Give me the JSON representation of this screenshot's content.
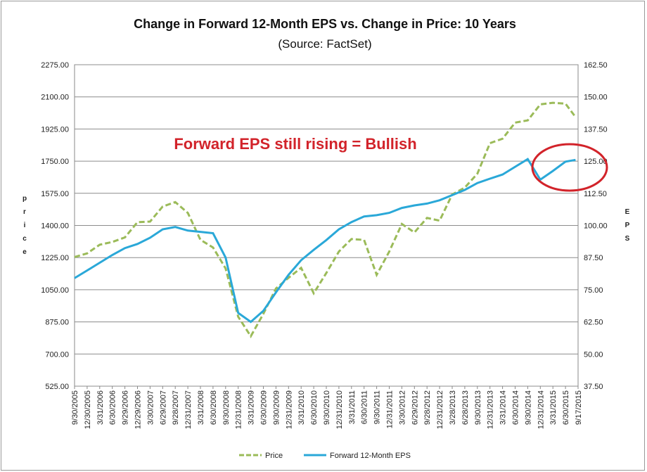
{
  "chart_data": {
    "type": "line",
    "title": "Change in Forward 12-Month EPS vs. Change in Price: 10 Years",
    "subtitle": "(Source: FactSet)",
    "ylabel_left": "Price",
    "ylabel_right": "EPS",
    "ylim_left": [
      525,
      2275
    ],
    "ylim_right": [
      37.5,
      162.5
    ],
    "yticks_left": [
      "2275.00",
      "2100.00",
      "1925.00",
      "1750.00",
      "1575.00",
      "1400.00",
      "1225.00",
      "1050.00",
      "875.00",
      "700.00",
      "525.00"
    ],
    "yticks_right": [
      "162.50",
      "150.00",
      "137.50",
      "125.00",
      "112.50",
      "100.00",
      "87.50",
      "75.00",
      "62.50",
      "50.00",
      "37.50"
    ],
    "x_ticks": [
      "9/30/2005",
      "12/30/2005",
      "3/31/2006",
      "6/30/2006",
      "9/29/2006",
      "12/29/2006",
      "3/30/2007",
      "6/29/2007",
      "9/28/2007",
      "12/31/2007",
      "3/31/2008",
      "6/30/2008",
      "9/30/2008",
      "12/31/2008",
      "3/31/2009",
      "6/30/2009",
      "9/30/2009",
      "12/31/2009",
      "3/31/2010",
      "6/30/2010",
      "9/30/2010",
      "12/31/2010",
      "3/31/2011",
      "6/30/2011",
      "9/30/2011",
      "12/31/2011",
      "3/30/2012",
      "6/29/2012",
      "9/28/2012",
      "12/31/2012",
      "3/28/2013",
      "6/28/2013",
      "9/30/2013",
      "12/31/2013",
      "3/31/2014",
      "6/30/2014",
      "9/30/2014",
      "12/31/2014",
      "3/31/2015",
      "6/30/2015",
      "9/17/2015"
    ],
    "grid": true,
    "legend_position": "bottom",
    "series": [
      {
        "name": "Price",
        "axis": "left",
        "color": "#9bbb59",
        "style": "dashed",
        "x": [
          0,
          1,
          2,
          3,
          4,
          5,
          6,
          7,
          8,
          9,
          10,
          11,
          12,
          13,
          14,
          15,
          16,
          17,
          18,
          19,
          20,
          21,
          22,
          23,
          24,
          25,
          26,
          27,
          28,
          29,
          30,
          31,
          32,
          33,
          34,
          35,
          36,
          37,
          38,
          39,
          39.8
        ],
        "values": [
          1228,
          1248,
          1295,
          1310,
          1335,
          1418,
          1421,
          1503,
          1527,
          1468,
          1322,
          1280,
          1166,
          903,
          797,
          919,
          1057,
          1115,
          1169,
          1031,
          1141,
          1258,
          1326,
          1321,
          1131,
          1258,
          1408,
          1362,
          1441,
          1426,
          1569,
          1606,
          1682,
          1848,
          1872,
          1960,
          1972,
          2059,
          2068,
          2063,
          1990
        ]
      },
      {
        "name": "Forward 12-Month EPS",
        "axis": "left_scaled_eps",
        "color": "#2aa8d8",
        "style": "solid",
        "x": [
          0,
          1,
          2,
          3,
          4,
          5,
          6,
          7,
          8,
          9,
          10,
          11,
          12,
          13,
          14,
          15,
          16,
          17,
          18,
          19,
          20,
          21,
          22,
          23,
          24,
          25,
          26,
          27,
          28,
          29,
          30,
          31,
          32,
          33,
          34,
          35,
          36,
          37,
          38,
          39,
          39.8
        ],
        "values": [
          79.5,
          82.5,
          85.5,
          88.5,
          91.2,
          92.8,
          95.2,
          98.5,
          99.4,
          98.0,
          97.5,
          97.0,
          87.5,
          66.0,
          62.5,
          66.8,
          74.0,
          80.8,
          86.5,
          90.5,
          94.3,
          98.5,
          101.3,
          103.5,
          104.0,
          104.9,
          106.8,
          107.8,
          108.5,
          109.8,
          111.8,
          113.8,
          116.5,
          118.2,
          119.8,
          122.8,
          125.8,
          117.8,
          121.2,
          124.8,
          125.5
        ]
      }
    ]
  },
  "annotation": "Forward EPS still rising = Bullish",
  "legend": {
    "price": "Price",
    "eps": "Forward 12-Month EPS"
  }
}
